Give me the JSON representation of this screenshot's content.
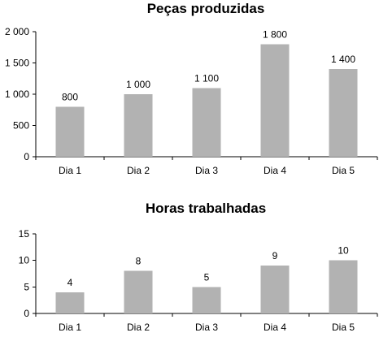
{
  "chart_data": [
    {
      "type": "bar",
      "title": "Peças produzidas",
      "categories": [
        "Dia 1",
        "Dia 2",
        "Dia 3",
        "Dia 4",
        "Dia 5"
      ],
      "values": [
        800,
        1000,
        1100,
        1800,
        1400
      ],
      "value_labels": [
        "800",
        "1 000",
        "1 100",
        "1 800",
        "1 400"
      ],
      "ylim": [
        0,
        2000
      ],
      "yticks": [
        0,
        500,
        1000,
        1500,
        2000
      ],
      "ytick_labels": [
        "0",
        "500",
        "1 000",
        "1 500",
        "2 000"
      ],
      "xlabel": "",
      "ylabel": "",
      "grid": false,
      "legend": "none",
      "bar_color": "#b2b2b2"
    },
    {
      "type": "bar",
      "title": "Horas trabalhadas",
      "categories": [
        "Dia 1",
        "Dia 2",
        "Dia 3",
        "Dia 4",
        "Dia 5"
      ],
      "values": [
        4,
        8,
        5,
        9,
        10
      ],
      "value_labels": [
        "4",
        "8",
        "5",
        "9",
        "10"
      ],
      "ylim": [
        0,
        15
      ],
      "yticks": [
        0,
        5,
        10,
        15
      ],
      "ytick_labels": [
        "0",
        "5",
        "10",
        "15"
      ],
      "xlabel": "",
      "ylabel": "",
      "grid": false,
      "legend": "none",
      "bar_color": "#b2b2b2"
    }
  ]
}
